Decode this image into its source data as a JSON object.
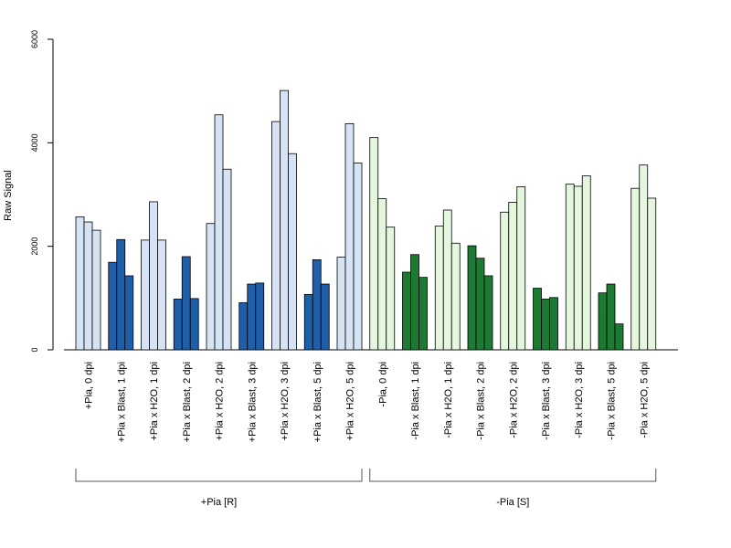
{
  "chart_data": {
    "type": "bar",
    "ylabel": "Raw Signal",
    "xlabel": "",
    "ylim": [
      0,
      6000
    ],
    "yticks": [
      0,
      2000,
      4000,
      6000
    ],
    "grid": false,
    "bars_per_category": 3,
    "colors": {
      "plus_light": "#d5e3f4",
      "plus_dark": "#1f5ea8",
      "minus_light": "#e4f6dd",
      "minus_dark": "#1d7a32",
      "edge": "#000000"
    },
    "categories": [
      {
        "label": "+Pia, 0 dpi",
        "values": [
          2570,
          2470,
          2310
        ],
        "color": "plus_light"
      },
      {
        "label": "+Pia x Blast, 1 dpi",
        "values": [
          1690,
          2130,
          1430
        ],
        "color": "plus_dark"
      },
      {
        "label": "+Pia x H2O, 1 dpi",
        "values": [
          2120,
          2860,
          2120
        ],
        "color": "plus_light"
      },
      {
        "label": "+Pia x Blast, 2 dpi",
        "values": [
          980,
          1800,
          990
        ],
        "color": "plus_dark"
      },
      {
        "label": "+Pia x H2O, 2 dpi",
        "values": [
          2440,
          4540,
          3490
        ],
        "color": "plus_light"
      },
      {
        "label": "+Pia x Blast, 3 dpi",
        "values": [
          910,
          1270,
          1290
        ],
        "color": "plus_dark"
      },
      {
        "label": "+Pia x H2O, 3 dpi",
        "values": [
          4410,
          5010,
          3790
        ],
        "color": "plus_light"
      },
      {
        "label": "+Pia x Blast, 5 dpi",
        "values": [
          1070,
          1740,
          1270
        ],
        "color": "plus_dark"
      },
      {
        "label": "+Pia x H2O, 5 dpi",
        "values": [
          1790,
          4370,
          3610
        ],
        "color": "plus_light"
      },
      {
        "label": "-Pia, 0 dpi",
        "values": [
          4100,
          2920,
          2370
        ],
        "color": "minus_light"
      },
      {
        "label": "-Pia x Blast, 1 dpi",
        "values": [
          1500,
          1840,
          1400
        ],
        "color": "minus_dark"
      },
      {
        "label": "-Pia x H2O, 1 dpi",
        "values": [
          2390,
          2700,
          2060
        ],
        "color": "minus_light"
      },
      {
        "label": "-Pia x Blast, 2 dpi",
        "values": [
          2010,
          1770,
          1430
        ],
        "color": "minus_dark"
      },
      {
        "label": "-Pia x H2O, 2 dpi",
        "values": [
          2660,
          2850,
          3150
        ],
        "color": "minus_light"
      },
      {
        "label": "-Pia x Blast, 3 dpi",
        "values": [
          1190,
          980,
          1010
        ],
        "color": "minus_dark"
      },
      {
        "label": "-Pia x H2O, 3 dpi",
        "values": [
          3200,
          3160,
          3360
        ],
        "color": "minus_light"
      },
      {
        "label": "-Pia x Blast, 5 dpi",
        "values": [
          1100,
          1270,
          500
        ],
        "color": "minus_dark"
      },
      {
        "label": "-Pia x H2O, 5 dpi",
        "values": [
          3120,
          3570,
          2930
        ],
        "color": "minus_light"
      }
    ],
    "groups": [
      {
        "label": "+Pia [R]",
        "first_category": 0,
        "last_category": 8
      },
      {
        "label": "-Pia [S]",
        "first_category": 9,
        "last_category": 17
      }
    ]
  }
}
